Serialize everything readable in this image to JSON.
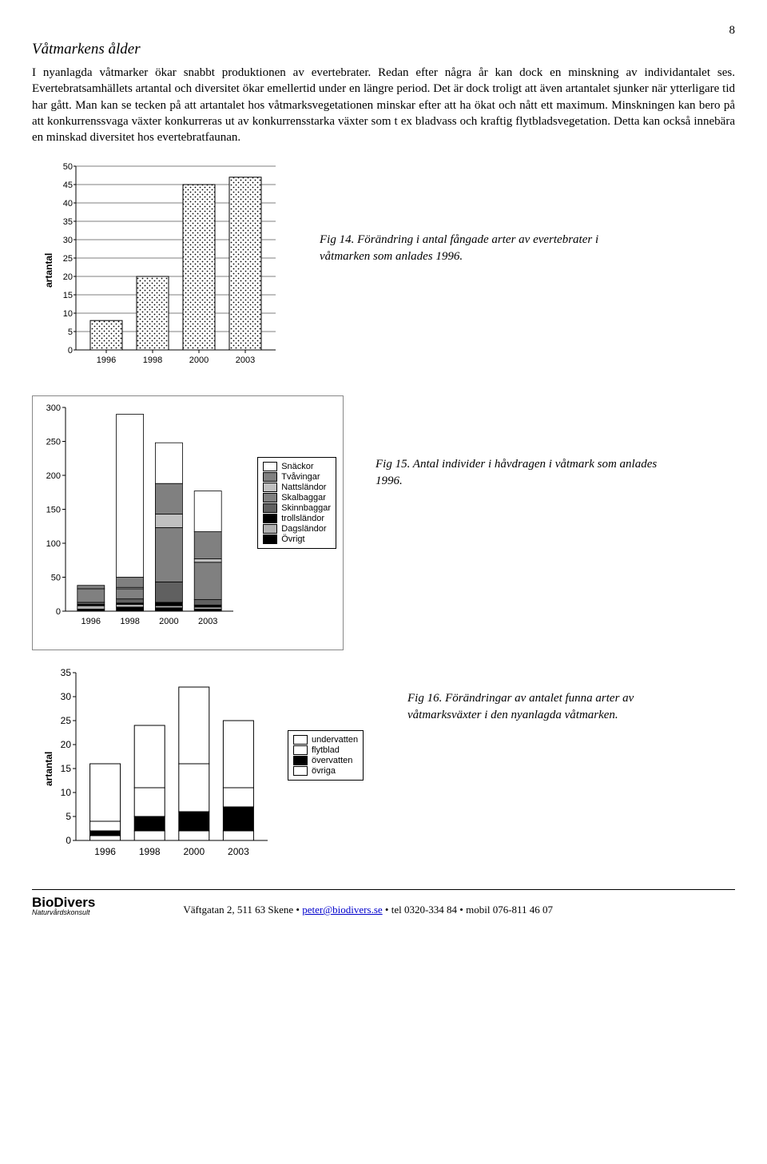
{
  "page_number": "8",
  "section_title": "Våtmarkens ålder",
  "body_text": "I nyanlagda våtmarker ökar snabbt produktionen av evertebrater. Redan efter några år kan dock en minskning av individantalet ses. Evertebratsamhällets artantal och diversitet ökar emellertid under en längre period. Det är dock troligt att även artantalet sjunker när ytterligare tid har gått. Man kan se tecken på att artantalet hos våtmarksvegetationen minskar efter att ha ökat och nått ett maximum. Minskningen kan bero på att konkurrenssvaga växter konkurreras ut av konkurrensstarka växter som t ex bladvass och kraftig flytbladsvegetation. Detta kan också innebära en minskad diversitet hos evertebratfaunan.",
  "fig14": {
    "type": "bar",
    "ylabel": "artantal",
    "categories": [
      "1996",
      "1998",
      "2000",
      "2003"
    ],
    "values": [
      8,
      20,
      45,
      47
    ],
    "ylim": [
      0,
      50
    ],
    "ytick_step": 5,
    "bar_fill": "pattern-dots",
    "bar_border": "#000000",
    "grid_color": "#000000",
    "background": "#ffffff",
    "fontsize_ticks": 11,
    "caption": "Fig 14. Förändring i antal fångade arter av evertebrater i våtmarken som anlades 1996."
  },
  "fig15": {
    "type": "stacked-bar",
    "categories": [
      "1996",
      "1998",
      "2000",
      "2003"
    ],
    "ylim": [
      0,
      300
    ],
    "ytick_step": 50,
    "series_order": [
      "Övrigt",
      "Dagsländor",
      "trollsländor",
      "Skinnbaggar",
      "Skalbaggar",
      "Nattsländor",
      "Tvåvingar",
      "Snäckor"
    ],
    "series_colors": {
      "Snäckor": "#ffffff",
      "Tvåvingar": "#808080",
      "Nattsländor": "#c0c0c0",
      "Skalbaggar": "#808080",
      "Skinnbaggar": "#606060",
      "trollsländor": "#000000",
      "Dagsländor": "#b0b0b0",
      "Övrigt": "#000000"
    },
    "stacks": {
      "1996": {
        "Övrigt": 3,
        "Dagsländor": 5,
        "trollsländor": 2,
        "Skinnbaggar": 3,
        "Skalbaggar": 20,
        "Nattsländor": 0,
        "Tvåvingar": 5,
        "Snäckor": 0
      },
      "1998": {
        "Övrigt": 6,
        "Dagsländor": 4,
        "trollsländor": 2,
        "Skinnbaggar": 6,
        "Skalbaggar": 15,
        "Nattsländor": 2,
        "Tvåvingar": 15,
        "Snäckor": 240
      },
      "2000": {
        "Övrigt": 5,
        "Dagsländor": 3,
        "trollsländor": 5,
        "Skinnbaggar": 30,
        "Skalbaggar": 80,
        "Nattsländor": 20,
        "Tvåvingar": 45,
        "Snäckor": 60
      },
      "2003": {
        "Övrigt": 3,
        "Dagsländor": 3,
        "trollsländor": 3,
        "Skinnbaggar": 8,
        "Skalbaggar": 55,
        "Nattsländor": 5,
        "Tvåvingar": 40,
        "Snäckor": 60
      }
    },
    "legend_labels": [
      "Snäckor",
      "Tvåvingar",
      "Nattsländor",
      "Skalbaggar",
      "Skinnbaggar",
      "trollsländor",
      "Dagsländor",
      "Övrigt"
    ],
    "caption": "Fig 15. Antal individer i håvdragen i våtmark som anlades 1996.",
    "fontsize_ticks": 11,
    "background": "#ffffff"
  },
  "fig16": {
    "type": "stacked-bar",
    "ylabel": "artantal",
    "categories": [
      "1996",
      "1998",
      "2000",
      "2003"
    ],
    "ylim": [
      0,
      35
    ],
    "ytick_step": 5,
    "series_order": [
      "övriga",
      "övervatten",
      "flytblad",
      "undervatten"
    ],
    "series_colors": {
      "undervatten": "#ffffff",
      "flytblad": "#ffffff",
      "övervatten": "#000000",
      "övriga": "#ffffff"
    },
    "stacks": {
      "1996": {
        "övriga": 1,
        "övervatten": 1,
        "flytblad": 2,
        "undervatten": 12
      },
      "1998": {
        "övriga": 2,
        "övervatten": 3,
        "flytblad": 6,
        "undervatten": 13
      },
      "2000": {
        "övriga": 2,
        "övervatten": 4,
        "flytblad": 10,
        "undervatten": 16
      },
      "2003": {
        "övriga": 2,
        "övervatten": 5,
        "flytblad": 4,
        "undervatten": 14
      }
    },
    "legend_labels": [
      "undervatten",
      "flytblad",
      "övervatten",
      "övriga"
    ],
    "caption": "Fig 16. Förändringar av antalet funna arter av våtmarksväxter i den nyanlagda våtmarken.",
    "fontsize_ticks": 12,
    "background": "#ffffff"
  },
  "footer": {
    "brand": "BioDivers",
    "brand_sub": "Naturvårdskonsult",
    "address": "Väftgatan 2, 511 63 Skene",
    "email": "peter@biodivers.se",
    "tel": "tel 0320-334 84",
    "mobil": "mobil 076-811 46 07",
    "bullet": "•"
  }
}
